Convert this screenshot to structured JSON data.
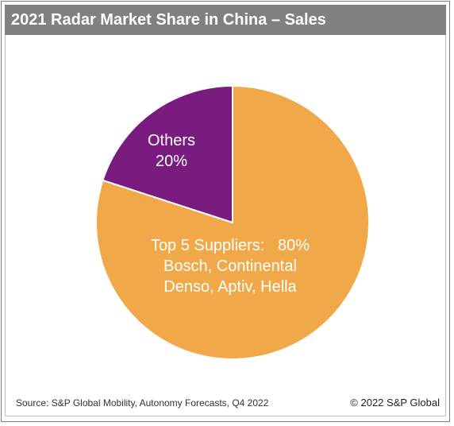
{
  "title": "2021 Radar Market Share in China – Sales",
  "chart_data": {
    "type": "pie",
    "slices": [
      {
        "name": "Top 5 Suppliers",
        "value": 80,
        "color": "#F0A848",
        "label_lines": [
          "Top 5 Suppliers:   80%",
          "Bosch, Continental",
          "Denso, Aptiv, Hella"
        ]
      },
      {
        "name": "Others",
        "value": 20,
        "color": "#7A1B7F",
        "label_lines": [
          "Others",
          "20%"
        ]
      }
    ],
    "start_angle": "12 o'clock",
    "direction": "clockwise"
  },
  "footer": {
    "source": "Source:   S&P Global Mobility, Autonomy Forecasts, Q4 2022",
    "copyright": "© 2022 S&P Global"
  }
}
